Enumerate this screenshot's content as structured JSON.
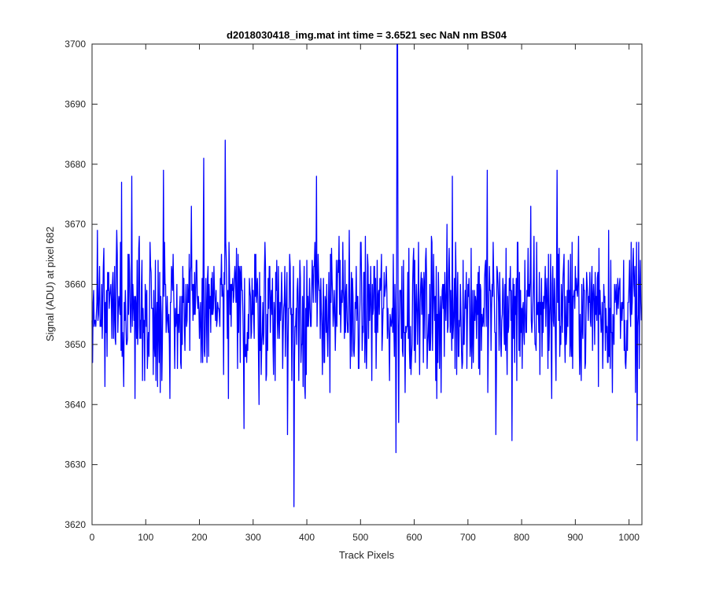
{
  "chart_data": {
    "type": "line",
    "title": "d2018030418_img.mat int time = 3.6521 sec  NaN nm BS04",
    "xlabel": "Track Pixels",
    "ylabel": "Signal (ADU) at pixel 682",
    "xlim": [
      0,
      1024
    ],
    "ylim": [
      3620,
      3700
    ],
    "xticks": [
      0,
      100,
      200,
      300,
      400,
      500,
      600,
      700,
      800,
      900,
      1000
    ],
    "yticks": [
      3620,
      3630,
      3640,
      3650,
      3660,
      3670,
      3680,
      3690,
      3700
    ],
    "grid": false,
    "legend": "none",
    "line_color": "#0000ff",
    "n_points": 1024,
    "noise_mean": 3656,
    "noise_spread": 6,
    "noise_range": [
      3636,
      3676
    ],
    "notable_points": [
      {
        "x": 10,
        "y": 3669
      },
      {
        "x": 55,
        "y": 3677
      },
      {
        "x": 74,
        "y": 3678
      },
      {
        "x": 133,
        "y": 3679
      },
      {
        "x": 208,
        "y": 3681
      },
      {
        "x": 248,
        "y": 3684
      },
      {
        "x": 283,
        "y": 3636
      },
      {
        "x": 364,
        "y": 3635
      },
      {
        "x": 376,
        "y": 3623
      },
      {
        "x": 377,
        "y": 3647
      },
      {
        "x": 418,
        "y": 3678
      },
      {
        "x": 563,
        "y": 3648
      },
      {
        "x": 566,
        "y": 3632
      },
      {
        "x": 568,
        "y": 3700
      },
      {
        "x": 569,
        "y": 3700
      },
      {
        "x": 571,
        "y": 3637
      },
      {
        "x": 671,
        "y": 3678
      },
      {
        "x": 736,
        "y": 3679
      },
      {
        "x": 752,
        "y": 3635
      },
      {
        "x": 782,
        "y": 3634
      },
      {
        "x": 866,
        "y": 3679
      },
      {
        "x": 1015,
        "y": 3634
      }
    ]
  }
}
